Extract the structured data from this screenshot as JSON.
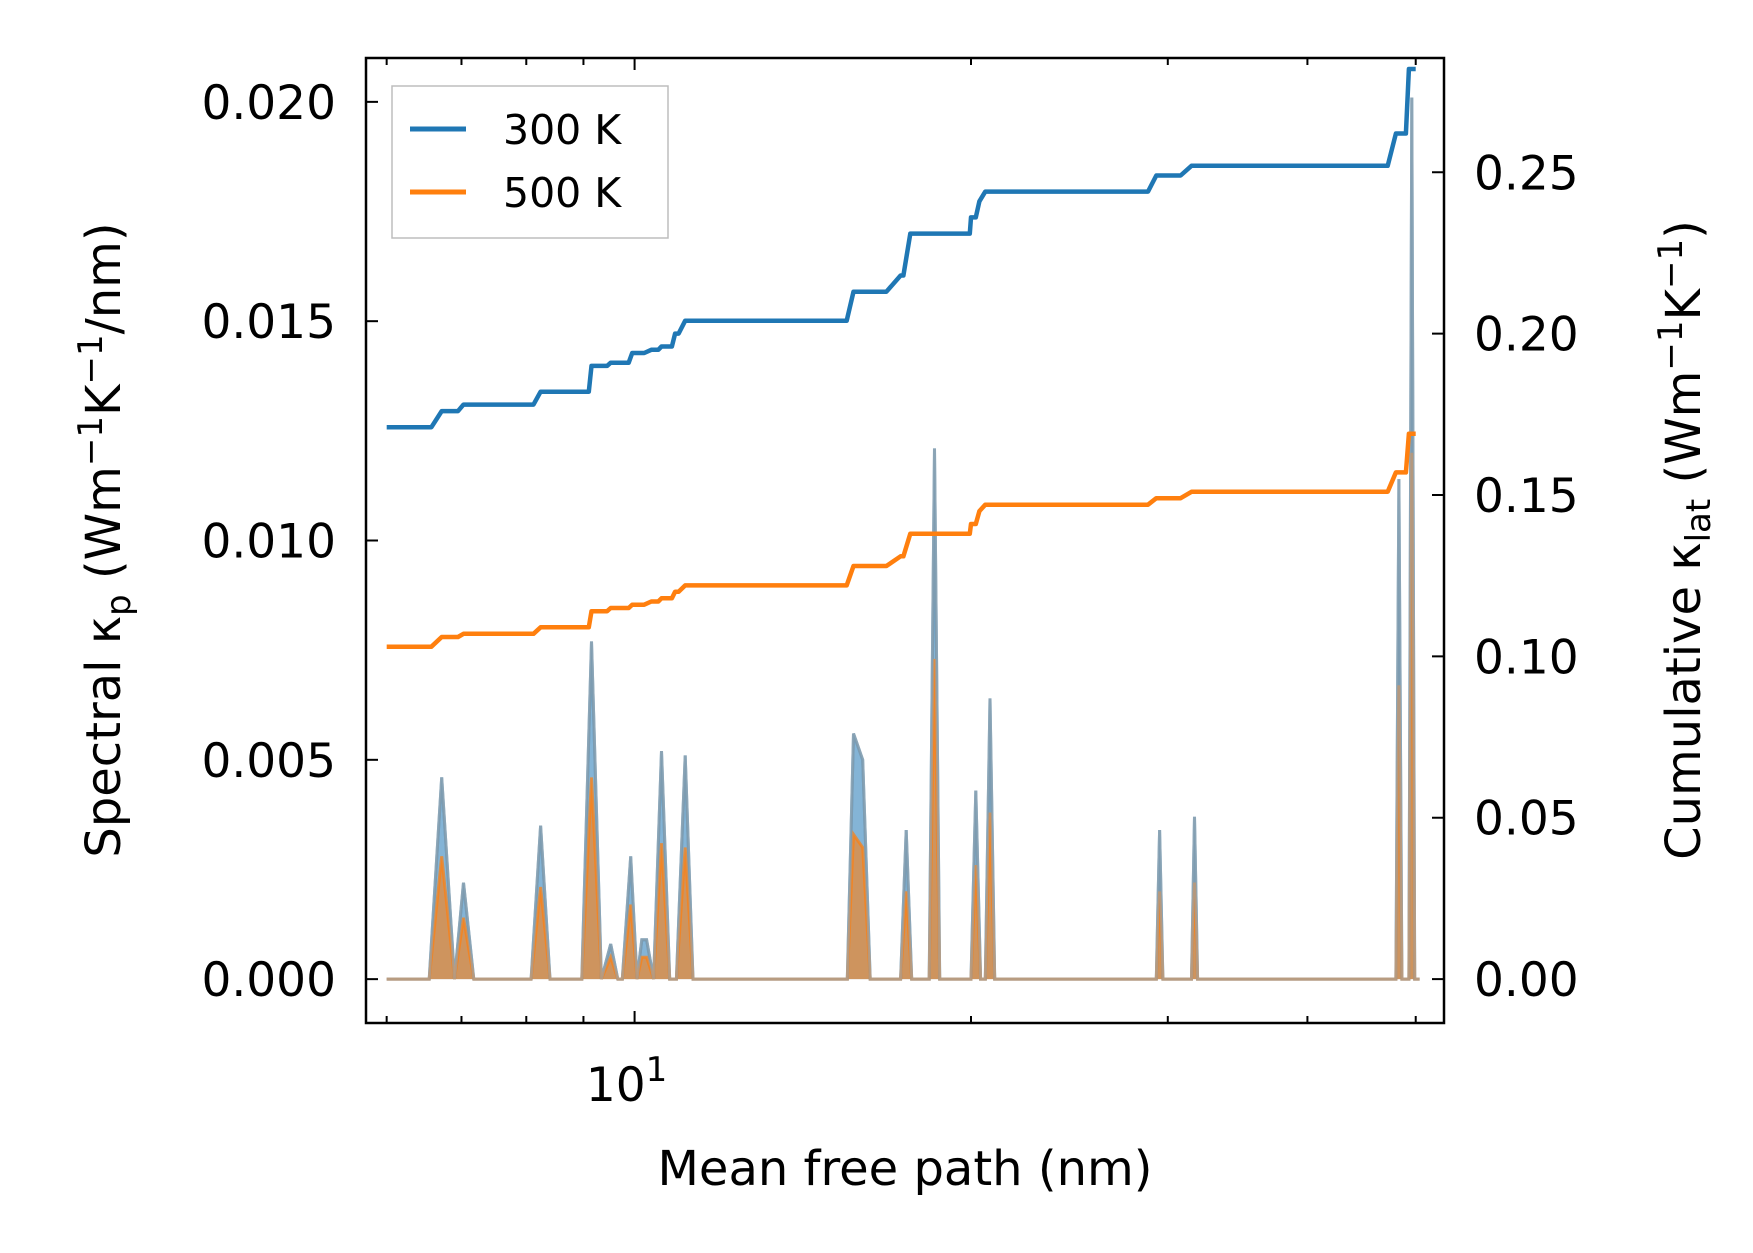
{
  "chart_data": {
    "type": "line",
    "xscale": "log",
    "xlabel": "Mean free path (nm)",
    "x_major_ticks": [
      {
        "value": 10,
        "base": "10",
        "exp": "1"
      }
    ],
    "x_minor_ticks": [
      6,
      7,
      8,
      9,
      20,
      30,
      40,
      50
    ],
    "xlim": [
      5.75,
      53
    ],
    "left_axis": {
      "label_parts": {
        "pre": "Spectral κ",
        "sub": "p",
        "unit_open": " (Wm",
        "exp1": "−1",
        "mid": "K",
        "exp2": "−1",
        "close": "/nm)"
      },
      "ylim": [
        -0.001,
        0.021
      ],
      "ticks": [
        "0.000",
        "0.005",
        "0.010",
        "0.015",
        "0.020"
      ]
    },
    "right_axis": {
      "label_parts": {
        "pre": "Cumulative κ",
        "sub": "lat",
        "unit_open": " (Wm",
        "exp1": "−1",
        "mid": "K",
        "exp2": "−1",
        "close": ")"
      },
      "ylim": [
        -0.0136,
        0.2854
      ],
      "ticks": [
        "0.00",
        "0.05",
        "0.10",
        "0.15",
        "0.20",
        "0.25"
      ]
    },
    "colors": {
      "s300": "#1f77b4",
      "s500": "#ff7f0e",
      "fill": "#a8a8a8"
    },
    "legend": [
      {
        "name": "300 K",
        "color": "#1f77b4"
      },
      {
        "name": "500 K",
        "color": "#ff7f0e"
      }
    ],
    "legend_position": "top-left",
    "spectral_series": [
      {
        "name": "300 K spectral",
        "color": "#1f77b4",
        "x": [
          6.0,
          6.55,
          6.72,
          6.9,
          7.03,
          7.18,
          8.08,
          8.24,
          8.4,
          8.97,
          9.15,
          9.34,
          9.52,
          9.66,
          9.75,
          9.92,
          10.05,
          10.15,
          10.25,
          10.4,
          10.57,
          10.75,
          10.9,
          11.1,
          11.28,
          11.45,
          11.64,
          11.82,
          15.5,
          15.7,
          16.0,
          16.25,
          17.3,
          17.5,
          17.7,
          18.35,
          18.55,
          18.75,
          20.0,
          20.2,
          20.4,
          20.6,
          20.8,
          21.0,
          21.3,
          29.3,
          29.5,
          29.7,
          31.5,
          31.7,
          31.9,
          48.0,
          48.3,
          48.6,
          49.3,
          49.6,
          49.9,
          50.2,
          50.4
        ],
        "y": [
          0.0,
          0.0,
          0.0046,
          0.0,
          0.0022,
          0.0,
          0.0,
          0.0035,
          0.0,
          0.0,
          0.0077,
          0.0,
          0.0008,
          0.0,
          0.0,
          0.0028,
          0.0,
          0.0009,
          0.0009,
          0.0,
          0.0052,
          0.0,
          0.0,
          0.0051,
          0.0,
          0.0,
          0.0,
          0.0,
          0.0,
          0.0056,
          0.005,
          0.0,
          0.0,
          0.0034,
          0.0,
          0.0,
          0.0121,
          0.0,
          0.0,
          0.0043,
          0.0,
          0.0,
          0.0064,
          0.0,
          0.0,
          0.0,
          0.0034,
          0.0,
          0.0,
          0.0037,
          0.0,
          0.0,
          0.0114,
          0.0,
          0.0,
          0.0201,
          0.0,
          0.0,
          0.0
        ]
      },
      {
        "name": "500 K spectral",
        "color": "#ff7f0e",
        "x": [
          6.0,
          6.55,
          6.72,
          6.9,
          7.03,
          7.18,
          8.08,
          8.24,
          8.4,
          8.97,
          9.15,
          9.34,
          9.52,
          9.66,
          9.75,
          9.92,
          10.05,
          10.15,
          10.25,
          10.4,
          10.57,
          10.75,
          10.9,
          11.1,
          11.28,
          11.45,
          11.64,
          11.82,
          15.5,
          15.7,
          16.0,
          16.25,
          17.3,
          17.5,
          17.7,
          18.35,
          18.55,
          18.75,
          20.0,
          20.2,
          20.4,
          20.6,
          20.8,
          21.0,
          21.3,
          29.3,
          29.5,
          29.7,
          31.5,
          31.7,
          31.9,
          48.0,
          48.3,
          48.6,
          49.3,
          49.6,
          49.9,
          50.2,
          50.4
        ],
        "y": [
          0.0,
          0.0,
          0.0028,
          0.0,
          0.0014,
          0.0,
          0.0,
          0.0021,
          0.0,
          0.0,
          0.0046,
          0.0,
          0.0005,
          0.0,
          0.0,
          0.0017,
          0.0,
          0.0005,
          0.0005,
          0.0,
          0.0031,
          0.0,
          0.0,
          0.003,
          0.0,
          0.0,
          0.0,
          0.0,
          0.0,
          0.0033,
          0.003,
          0.0,
          0.0,
          0.002,
          0.0,
          0.0,
          0.0073,
          0.0,
          0.0,
          0.0026,
          0.0,
          0.0,
          0.0038,
          0.0,
          0.0,
          0.0,
          0.002,
          0.0,
          0.0,
          0.0022,
          0.0,
          0.0,
          0.0067,
          0.0,
          0.0,
          0.012,
          0.0,
          0.0,
          0.0
        ]
      }
    ],
    "cumulative_series": [
      {
        "name": "300 K",
        "color": "#1f77b4",
        "x": [
          6.0,
          6.58,
          6.72,
          6.95,
          7.03,
          7.7,
          8.12,
          8.24,
          8.85,
          9.1,
          9.15,
          9.45,
          9.52,
          9.88,
          9.95,
          10.2,
          10.35,
          10.5,
          10.57,
          10.8,
          10.87,
          10.95,
          11.1,
          15.48,
          15.7,
          16.0,
          16.8,
          17.3,
          17.4,
          17.65,
          18.45,
          18.55,
          19.95,
          20.0,
          20.2,
          20.35,
          20.6,
          20.8,
          28.8,
          29.3,
          30.8,
          31.5,
          47.2,
          48.0,
          49.0,
          49.3,
          50.0
        ],
        "y": [
          0.171,
          0.171,
          0.176,
          0.176,
          0.178,
          0.178,
          0.178,
          0.182,
          0.182,
          0.182,
          0.19,
          0.19,
          0.191,
          0.191,
          0.194,
          0.194,
          0.195,
          0.195,
          0.196,
          0.196,
          0.2,
          0.2,
          0.204,
          0.204,
          0.213,
          0.213,
          0.213,
          0.218,
          0.218,
          0.231,
          0.231,
          0.231,
          0.231,
          0.236,
          0.236,
          0.241,
          0.244,
          0.244,
          0.244,
          0.249,
          0.249,
          0.252,
          0.252,
          0.262,
          0.262,
          0.282,
          0.282
        ]
      },
      {
        "name": "500 K",
        "color": "#ff7f0e",
        "x": [
          6.0,
          6.58,
          6.72,
          6.95,
          7.03,
          7.7,
          8.12,
          8.24,
          8.85,
          9.1,
          9.15,
          9.45,
          9.52,
          9.88,
          9.95,
          10.2,
          10.35,
          10.5,
          10.57,
          10.8,
          10.87,
          10.95,
          11.1,
          15.48,
          15.7,
          16.0,
          16.8,
          17.3,
          17.4,
          17.65,
          18.45,
          18.55,
          19.95,
          20.0,
          20.2,
          20.35,
          20.6,
          20.8,
          28.8,
          29.3,
          30.8,
          31.5,
          47.2,
          48.0,
          49.0,
          49.3,
          50.0
        ],
        "y": [
          0.103,
          0.103,
          0.106,
          0.106,
          0.107,
          0.107,
          0.107,
          0.109,
          0.109,
          0.109,
          0.114,
          0.114,
          0.115,
          0.115,
          0.116,
          0.116,
          0.117,
          0.117,
          0.118,
          0.118,
          0.12,
          0.12,
          0.122,
          0.122,
          0.128,
          0.128,
          0.128,
          0.131,
          0.131,
          0.138,
          0.138,
          0.138,
          0.138,
          0.141,
          0.141,
          0.145,
          0.147,
          0.147,
          0.147,
          0.149,
          0.149,
          0.151,
          0.151,
          0.157,
          0.157,
          0.169,
          0.169
        ]
      }
    ]
  }
}
